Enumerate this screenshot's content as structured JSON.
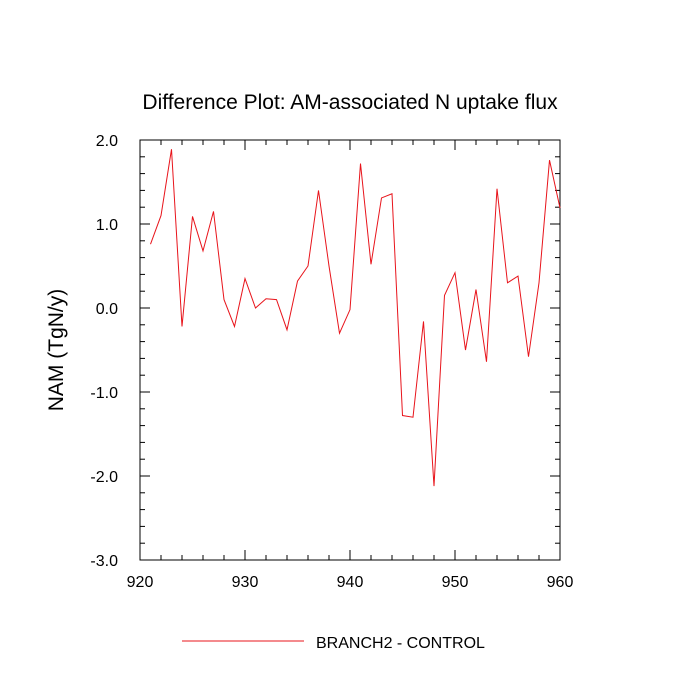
{
  "chart_data": {
    "type": "line",
    "title": "Difference Plot: AM-associated N uptake flux",
    "xlabel": "",
    "ylabel": "NAM  (TgN/y)",
    "xlim": [
      920,
      960
    ],
    "ylim": [
      -3.0,
      2.0
    ],
    "x_ticks": [
      920,
      930,
      940,
      950,
      960
    ],
    "x_tick_labels": [
      "920",
      "930",
      "940",
      "950",
      "960"
    ],
    "y_ticks": [
      2.0,
      1.0,
      0.0,
      -1.0,
      -2.0,
      -3.0
    ],
    "y_tick_labels": [
      "2.0",
      "1.0",
      "0.0",
      "-1.0",
      "-2.0",
      "-3.0"
    ],
    "grid": false,
    "legend_position": "bottom",
    "series": [
      {
        "name": "BRANCH2 - CONTROL",
        "color": "#e8141b",
        "x": [
          921,
          922,
          923,
          924,
          925,
          926,
          927,
          928,
          929,
          930,
          931,
          932,
          933,
          934,
          935,
          936,
          937,
          938,
          939,
          940,
          941,
          942,
          943,
          944,
          945,
          946,
          947,
          948,
          949,
          950,
          951,
          952,
          953,
          954,
          955,
          956,
          957,
          958,
          959,
          960
        ],
        "values": [
          0.76,
          1.1,
          1.89,
          -0.22,
          1.09,
          0.68,
          1.15,
          0.1,
          -0.22,
          0.35,
          0.0,
          0.11,
          0.1,
          -0.26,
          0.32,
          0.5,
          1.4,
          0.5,
          -0.3,
          -0.02,
          1.72,
          0.52,
          1.31,
          1.36,
          -1.28,
          -1.3,
          -0.16,
          -2.12,
          0.15,
          0.42,
          -0.5,
          0.22,
          -0.64,
          1.42,
          0.3,
          0.38,
          -0.58,
          0.3,
          1.76,
          1.19
        ]
      }
    ]
  }
}
